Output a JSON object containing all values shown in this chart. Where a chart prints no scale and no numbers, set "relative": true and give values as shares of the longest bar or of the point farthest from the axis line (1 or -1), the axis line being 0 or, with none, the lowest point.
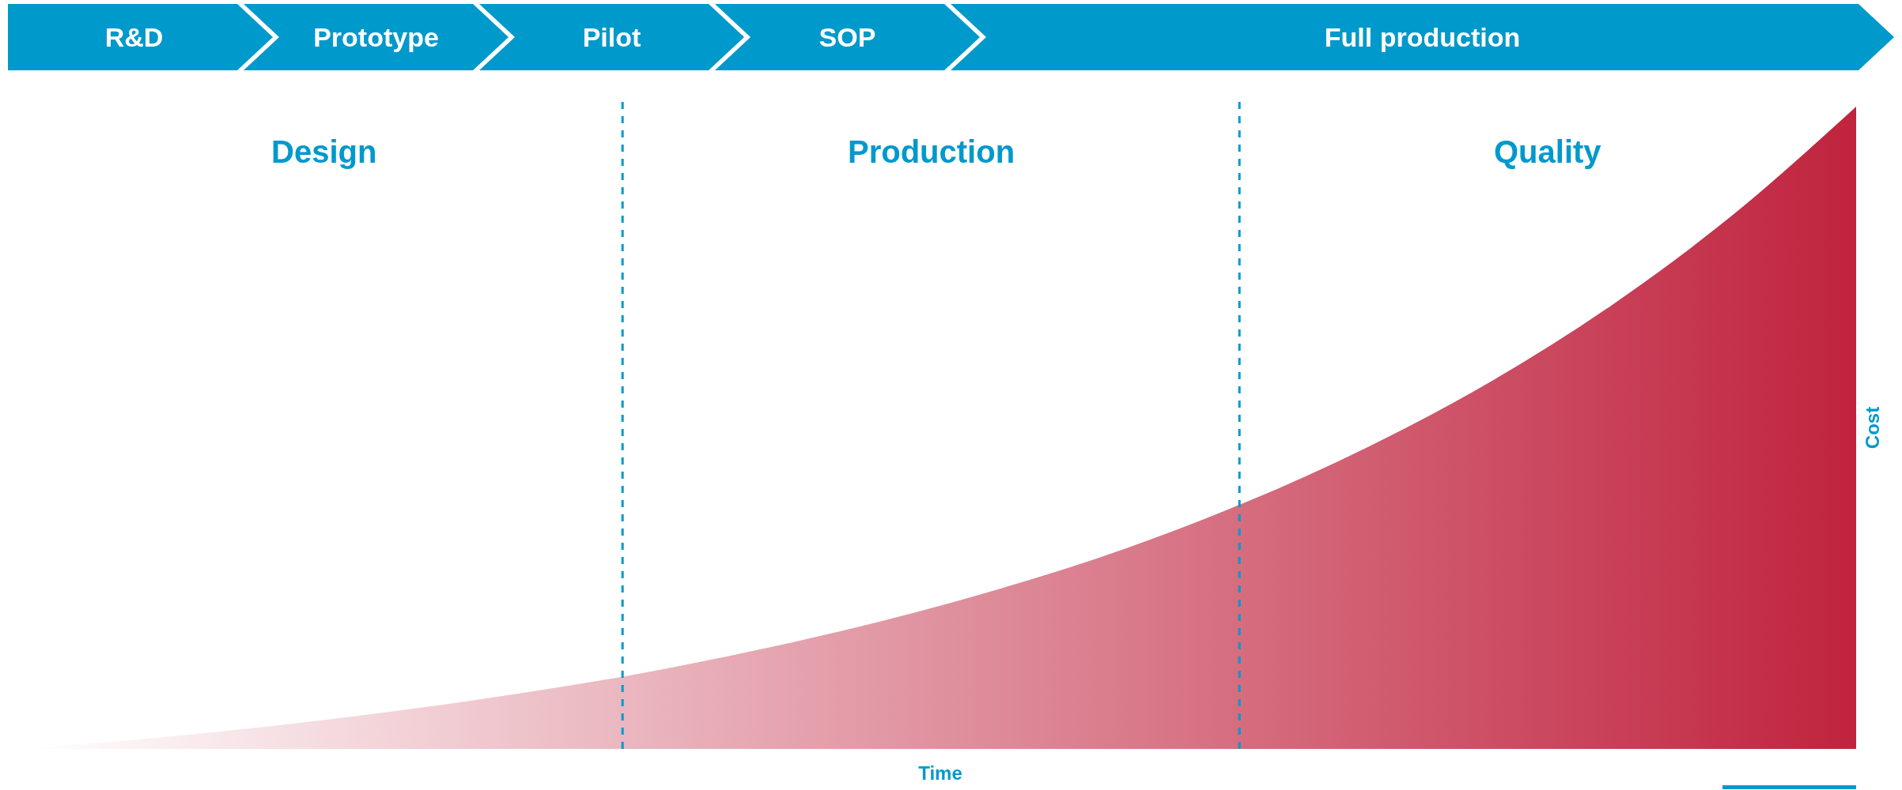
{
  "chart_data": {
    "type": "area",
    "relative": true,
    "categories": [
      null,
      null,
      null,
      null,
      null,
      null,
      null,
      null,
      null,
      null,
      null,
      null,
      null,
      null,
      null,
      null
    ],
    "series": [
      {
        "color": "#c0233e",
        "values": [
          0,
          0.016,
          0.035,
          0.058,
          0.085,
          0.116,
          0.154,
          0.198,
          0.25,
          0.311,
          0.384,
          0.47,
          0.571,
          0.691,
          0.833,
          1
        ]
      }
    ],
    "xlabel": "Time",
    "ylabel": "Cost",
    "annotations": [
      "R&D",
      "Prototype",
      "Pilot",
      "SOP",
      "Full production",
      "Design",
      "Production",
      "Quality"
    ],
    "grid": false
  }
}
